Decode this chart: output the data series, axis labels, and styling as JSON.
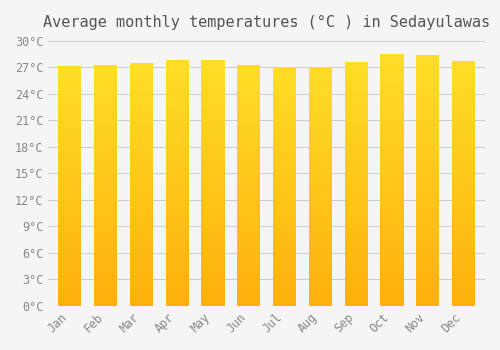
{
  "title": "Average monthly temperatures (°C ) in Sedayulawas",
  "months": [
    "Jan",
    "Feb",
    "Mar",
    "Apr",
    "May",
    "Jun",
    "Jul",
    "Aug",
    "Sep",
    "Oct",
    "Nov",
    "Dec"
  ],
  "values": [
    27.2,
    27.3,
    27.5,
    27.8,
    27.8,
    27.3,
    27.1,
    27.1,
    27.6,
    28.5,
    28.4,
    27.7
  ],
  "ylim": [
    0,
    30
  ],
  "yticks": [
    0,
    3,
    6,
    9,
    12,
    15,
    18,
    21,
    24,
    27,
    30
  ],
  "bar_color_top": "#FFC107",
  "bar_color_bottom": "#FFB300",
  "background_color": "#f5f5f5",
  "grid_color": "#cccccc",
  "title_fontsize": 11,
  "tick_fontsize": 8.5,
  "title_color": "#555555",
  "tick_color": "#888888"
}
